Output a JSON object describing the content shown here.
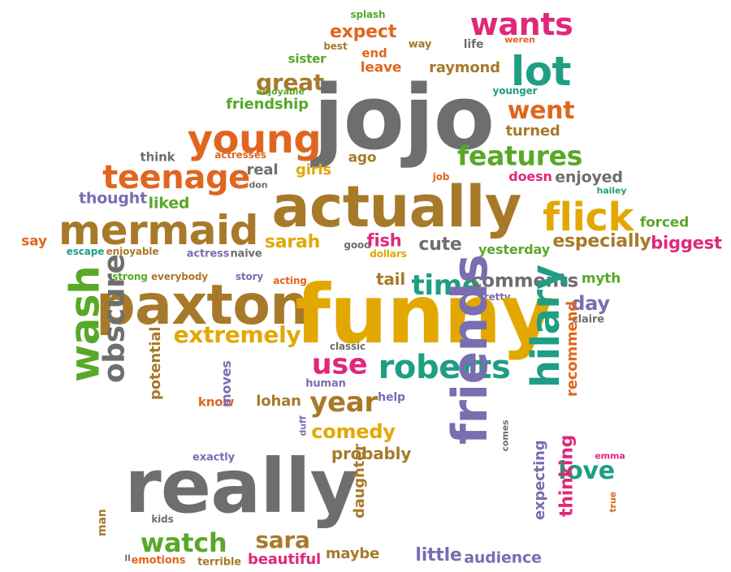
{
  "cloud": {
    "colors": {
      "orange": "#E0661F",
      "brown": "#A77A2A",
      "gray": "#6E6E6E",
      "pink": "#E0287A",
      "green": "#59A828",
      "teal": "#1F9E84",
      "purple": "#7A6DB0",
      "gold": "#E2A800"
    },
    "words": [
      {
        "text": "splash",
        "color": "green"
      },
      {
        "text": "wants",
        "color": "pink"
      },
      {
        "text": "expect",
        "color": "orange"
      },
      {
        "text": "way",
        "color": "brown"
      },
      {
        "text": "life",
        "color": "gray"
      },
      {
        "text": "weren",
        "color": "orange"
      },
      {
        "text": "best",
        "color": "brown"
      },
      {
        "text": "end",
        "color": "orange"
      },
      {
        "text": "sister",
        "color": "green"
      },
      {
        "text": "leave",
        "color": "orange"
      },
      {
        "text": "raymond",
        "color": "brown"
      },
      {
        "text": "lot",
        "color": "teal"
      },
      {
        "text": "younger",
        "color": "teal"
      },
      {
        "text": "great",
        "color": "brown"
      },
      {
        "text": "enjoyable",
        "color": "green"
      },
      {
        "text": "jojo",
        "color": "gray"
      },
      {
        "text": "friendship",
        "color": "green"
      },
      {
        "text": "went",
        "color": "orange"
      },
      {
        "text": "turned",
        "color": "brown"
      },
      {
        "text": "young",
        "color": "orange"
      },
      {
        "text": "features",
        "color": "green"
      },
      {
        "text": "think",
        "color": "gray"
      },
      {
        "text": "actresses",
        "color": "orange"
      },
      {
        "text": "ago",
        "color": "brown"
      },
      {
        "text": "teenage",
        "color": "orange"
      },
      {
        "text": "real",
        "color": "gray"
      },
      {
        "text": "girls",
        "color": "gold"
      },
      {
        "text": "job",
        "color": "orange"
      },
      {
        "text": "doesn",
        "color": "pink"
      },
      {
        "text": "enjoyed",
        "color": "gray"
      },
      {
        "text": "don",
        "color": "gray"
      },
      {
        "text": "hailey",
        "color": "teal"
      },
      {
        "text": "thought",
        "color": "purple"
      },
      {
        "text": "liked",
        "color": "green"
      },
      {
        "text": "actually",
        "color": "brown"
      },
      {
        "text": "flick",
        "color": "gold"
      },
      {
        "text": "mermaid",
        "color": "brown"
      },
      {
        "text": "forced",
        "color": "green"
      },
      {
        "text": "say",
        "color": "orange"
      },
      {
        "text": "escape",
        "color": "teal"
      },
      {
        "text": "enjoyable",
        "color": "brown"
      },
      {
        "text": "actress",
        "color": "purple"
      },
      {
        "text": "naive",
        "color": "gray"
      },
      {
        "text": "sarah",
        "color": "gold"
      },
      {
        "text": "good",
        "color": "gray"
      },
      {
        "text": "fish",
        "color": "pink"
      },
      {
        "text": "dollars",
        "color": "gold"
      },
      {
        "text": "cute",
        "color": "gray"
      },
      {
        "text": "yesterday",
        "color": "green"
      },
      {
        "text": "especially",
        "color": "brown"
      },
      {
        "text": "biggest",
        "color": "pink"
      },
      {
        "text": "strong",
        "color": "green"
      },
      {
        "text": "everybody",
        "color": "brown"
      },
      {
        "text": "story",
        "color": "purple"
      },
      {
        "text": "acting",
        "color": "orange"
      },
      {
        "text": "tail",
        "color": "brown"
      },
      {
        "text": "time",
        "color": "teal"
      },
      {
        "text": "comments",
        "color": "gray"
      },
      {
        "text": "myth",
        "color": "green"
      },
      {
        "text": "pretty",
        "color": "purple"
      },
      {
        "text": "paxton",
        "color": "brown"
      },
      {
        "text": "funny",
        "color": "gold"
      },
      {
        "text": "day",
        "color": "purple"
      },
      {
        "text": "claire",
        "color": "gray"
      },
      {
        "text": "extremely",
        "color": "gold"
      },
      {
        "text": "classic",
        "color": "gray"
      },
      {
        "text": "use",
        "color": "pink"
      },
      {
        "text": "roberts",
        "color": "teal"
      },
      {
        "text": "wash",
        "color": "green"
      },
      {
        "text": "obscure",
        "color": "gray"
      },
      {
        "text": "human",
        "color": "purple"
      },
      {
        "text": "potential",
        "color": "brown"
      },
      {
        "text": "know",
        "color": "orange"
      },
      {
        "text": "lohan",
        "color": "brown"
      },
      {
        "text": "year",
        "color": "brown"
      },
      {
        "text": "help",
        "color": "purple"
      },
      {
        "text": "friends",
        "color": "purple"
      },
      {
        "text": "hilary",
        "color": "teal"
      },
      {
        "text": "recommend",
        "color": "orange"
      },
      {
        "text": "moves",
        "color": "purple"
      },
      {
        "text": "comedy",
        "color": "gold"
      },
      {
        "text": "duff",
        "color": "purple"
      },
      {
        "text": "probably",
        "color": "brown"
      },
      {
        "text": "exactly",
        "color": "purple"
      },
      {
        "text": "comes",
        "color": "gray"
      },
      {
        "text": "emma",
        "color": "pink"
      },
      {
        "text": "love",
        "color": "teal"
      },
      {
        "text": "really",
        "color": "gray"
      },
      {
        "text": "expecting",
        "color": "purple"
      },
      {
        "text": "thinking",
        "color": "pink"
      },
      {
        "text": "true",
        "color": "orange"
      },
      {
        "text": "kids",
        "color": "gray"
      },
      {
        "text": "man",
        "color": "brown"
      },
      {
        "text": "watch",
        "color": "green"
      },
      {
        "text": "sara",
        "color": "brown"
      },
      {
        "text": "daughter",
        "color": "brown"
      },
      {
        "text": "ll",
        "color": "gray"
      },
      {
        "text": "emotions",
        "color": "orange"
      },
      {
        "text": "terrible",
        "color": "brown"
      },
      {
        "text": "beautiful",
        "color": "pink"
      },
      {
        "text": "maybe",
        "color": "brown"
      },
      {
        "text": "little",
        "color": "purple"
      },
      {
        "text": "audience",
        "color": "purple"
      }
    ]
  }
}
